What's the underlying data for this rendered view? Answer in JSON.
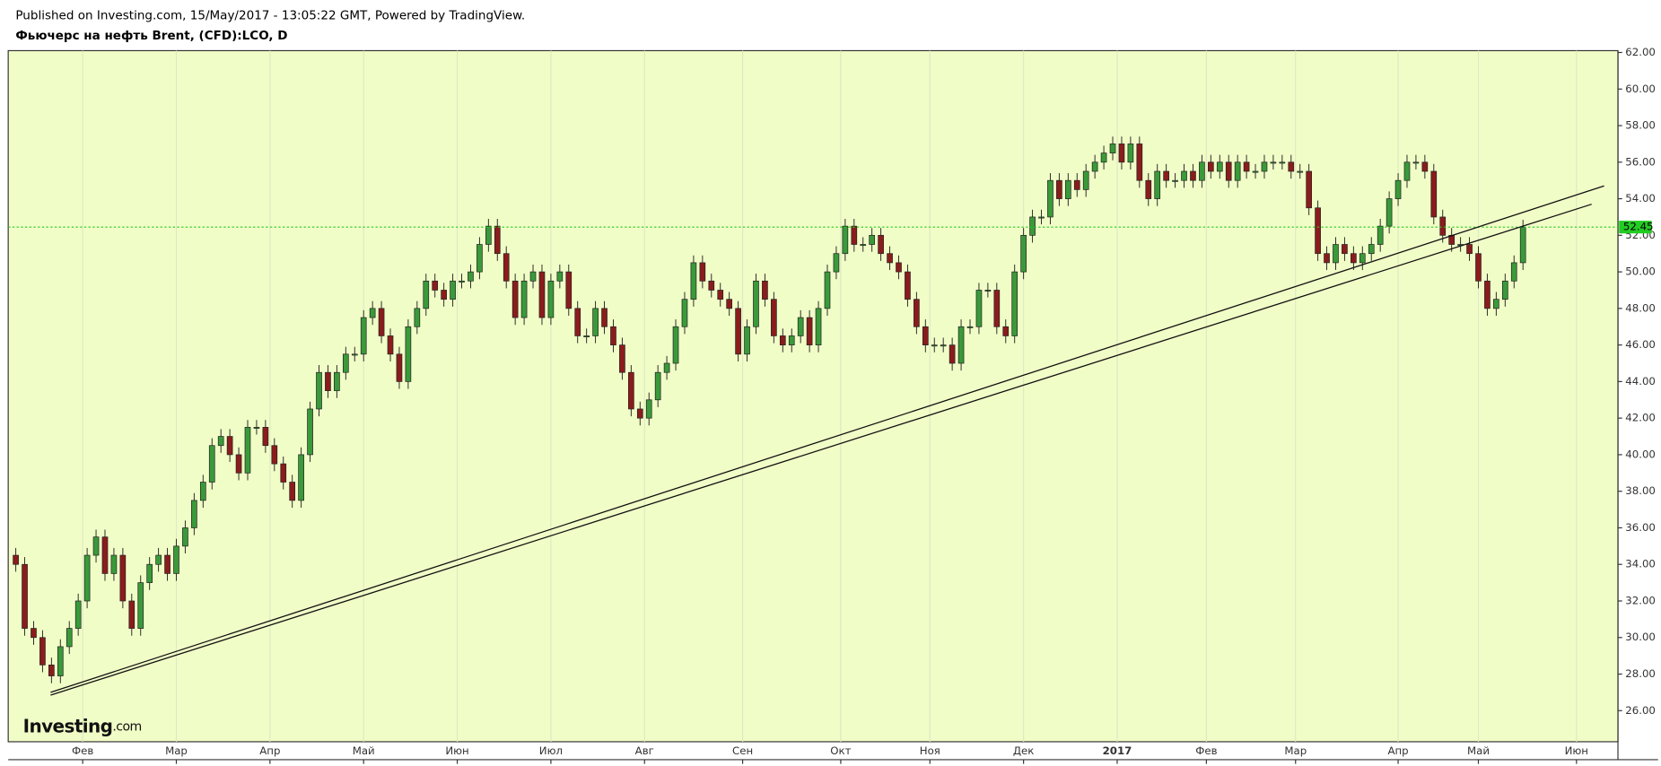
{
  "header": {
    "published": "Published on Investing.com, 15/May/2017 - 13:05:22 GMT, Powered by TradingView.",
    "symbol": "Фьючерс на нефть Brent, (CFD):LCO, D"
  },
  "watermark": {
    "brand": "Investing",
    "suffix": ".com"
  },
  "chart_data": {
    "type": "candlestick",
    "x": [
      0,
      2,
      4,
      6,
      8,
      10,
      12,
      14,
      16,
      18,
      20,
      22,
      24,
      26,
      28,
      30,
      32,
      34,
      36,
      38,
      40,
      42,
      44,
      46,
      48,
      50,
      52,
      54,
      56,
      58,
      60,
      62,
      64,
      66,
      68,
      70,
      72,
      74,
      76,
      78,
      80,
      82,
      84,
      86,
      88,
      90,
      92,
      94,
      96,
      98,
      100,
      102,
      104,
      106,
      108,
      110,
      112,
      114,
      116,
      118,
      120,
      122,
      124,
      126,
      128,
      130,
      132,
      134,
      136,
      138,
      140,
      142,
      144,
      146,
      148,
      150,
      152,
      154,
      156,
      158,
      160,
      162,
      164,
      166,
      168,
      170,
      172,
      174,
      176,
      178,
      180,
      182,
      184,
      186,
      188,
      190,
      192,
      194,
      196,
      198,
      200,
      202,
      204,
      206,
      208,
      210,
      212,
      214,
      216,
      218,
      220,
      222,
      224,
      226,
      228,
      230,
      232,
      234,
      236,
      238,
      240,
      242,
      244,
      246,
      248,
      250,
      252,
      254,
      256,
      258,
      260,
      262,
      264,
      266,
      268,
      270,
      272,
      274,
      276,
      278,
      280,
      282,
      284,
      286,
      288,
      290,
      292,
      294,
      296,
      298,
      300,
      302,
      304,
      306,
      308,
      310,
      312,
      314,
      316,
      318,
      320,
      322,
      324,
      326,
      328,
      330,
      332,
      334,
      336,
      338
    ],
    "series": [
      {
        "up_color": "#3a9a3a",
        "down_color": "#8b1c1c",
        "open": [
          34.5,
          34,
          30.5,
          30,
          28.5,
          27.9,
          29.5,
          30.5,
          32,
          34.5,
          35.5,
          33.5,
          34.5,
          32,
          30.5,
          33,
          34,
          34.5,
          33.5,
          35,
          36,
          37.5,
          38.5,
          40.5,
          41,
          40,
          39,
          41.5,
          41.5,
          40.5,
          39.5,
          38.5,
          37.5,
          40,
          42.5,
          44.5,
          43.5,
          44.5,
          45.5,
          45.5,
          47.5,
          48,
          46.5,
          45.5,
          44,
          47,
          48,
          49.5,
          49,
          48.5,
          49.5,
          49.5,
          50,
          51.5,
          52.5,
          51,
          49.5,
          47.5,
          49.5,
          50,
          47.5,
          49.5,
          50,
          48,
          46.5,
          46.5,
          48,
          47,
          46,
          44.5,
          42.5,
          42,
          43,
          44.5,
          45,
          47,
          48.5,
          50.5,
          49.5,
          49,
          48.5,
          48,
          45.5,
          47,
          49.5,
          48.5,
          46.5,
          46,
          46.5,
          47.5,
          46,
          48,
          50,
          51,
          52.5,
          51.5,
          51.5,
          52,
          51,
          50.5,
          50,
          48.5,
          47,
          46,
          46,
          46,
          45,
          47,
          47,
          49,
          49,
          47,
          46.5,
          50,
          52,
          53,
          53,
          55,
          54,
          55,
          54.5,
          55.5,
          56,
          56.5,
          57,
          56,
          57,
          55,
          54,
          55.5,
          55,
          55,
          55.5,
          55,
          56,
          55.5,
          56,
          55,
          56,
          55.5,
          55.5,
          56,
          56,
          56,
          55.5,
          55.5,
          53.5,
          51,
          50.5,
          51.5,
          51,
          50.5,
          51,
          51.5,
          52.5,
          54,
          55,
          56,
          56,
          55.5,
          53,
          52,
          51.5,
          51.5,
          51,
          49.5,
          48,
          48.5,
          49.5,
          50.5
        ],
        "high": [
          34.9,
          34.4,
          30.9,
          30.4,
          28.9,
          29.9,
          30.9,
          32.4,
          34.9,
          35.9,
          35.9,
          34.9,
          34.9,
          32.4,
          33.4,
          34.4,
          34.9,
          34.9,
          35.4,
          36.4,
          37.9,
          38.9,
          40.9,
          41.4,
          41.4,
          40.4,
          41.9,
          41.9,
          41.9,
          40.9,
          39.9,
          38.9,
          40.4,
          42.9,
          44.9,
          44.9,
          44.9,
          45.9,
          45.9,
          47.9,
          48.4,
          48.4,
          46.9,
          45.9,
          47.4,
          48.4,
          49.9,
          49.9,
          49.4,
          49.9,
          49.9,
          50.4,
          51.9,
          52.9,
          52.9,
          51.4,
          49.9,
          49.9,
          50.4,
          50.4,
          49.9,
          50.4,
          50.4,
          48.4,
          46.9,
          48.4,
          48.4,
          47.4,
          46.4,
          44.9,
          42.9,
          43.4,
          44.9,
          45.4,
          47.4,
          48.9,
          50.9,
          50.9,
          49.9,
          49.4,
          48.9,
          48.4,
          47.4,
          49.9,
          49.9,
          48.9,
          46.9,
          46.9,
          47.9,
          47.9,
          48.4,
          50.4,
          51.4,
          52.9,
          52.9,
          51.9,
          52.4,
          52.4,
          51.4,
          50.9,
          50.4,
          48.9,
          47.4,
          46.4,
          46.4,
          46.4,
          47.4,
          47.4,
          49.4,
          49.4,
          49.4,
          47.4,
          50.4,
          52.4,
          53.4,
          53.4,
          55.4,
          55.4,
          55.4,
          55.4,
          55.9,
          56.4,
          56.9,
          57.4,
          57.4,
          57.4,
          57.4,
          55.4,
          55.9,
          55.9,
          55.4,
          55.9,
          55.9,
          56.4,
          56.4,
          56.4,
          56.4,
          56.4,
          56.4,
          55.9,
          56.4,
          56.4,
          56.4,
          56.4,
          55.9,
          55.9,
          53.9,
          51.4,
          51.9,
          51.9,
          51.4,
          51.4,
          51.9,
          52.9,
          54.4,
          55.4,
          56.4,
          56.4,
          56.4,
          55.9,
          53.4,
          52.4,
          51.9,
          51.9,
          51.4,
          49.9,
          48.9,
          49.9,
          50.9,
          52.85
        ],
        "low": [
          33.6,
          30.1,
          29.6,
          28.1,
          27.5,
          27.5,
          29.1,
          30.1,
          31.6,
          34.1,
          33.1,
          33.1,
          31.6,
          30.1,
          30.1,
          32.6,
          33.6,
          33.1,
          33.1,
          34.6,
          35.6,
          37.1,
          38.1,
          40.1,
          39.6,
          38.6,
          38.6,
          41.1,
          40.1,
          39.1,
          38.1,
          37.1,
          37.1,
          39.6,
          42.1,
          43.1,
          43.1,
          44.1,
          45.1,
          45.1,
          47.1,
          46.1,
          45.1,
          43.6,
          43.6,
          46.6,
          47.6,
          48.6,
          48.1,
          48.1,
          49.1,
          49.1,
          49.6,
          51.1,
          50.6,
          49.1,
          47.1,
          47.1,
          49.1,
          47.1,
          47.1,
          49.1,
          47.6,
          46.1,
          46.1,
          46.1,
          46.6,
          45.6,
          44.1,
          42.1,
          41.6,
          41.6,
          42.6,
          44.1,
          44.6,
          46.6,
          48.1,
          49.1,
          48.6,
          48.1,
          47.6,
          45.1,
          45.1,
          46.6,
          48.1,
          46.1,
          45.6,
          45.6,
          46.1,
          45.6,
          45.6,
          47.6,
          49.6,
          50.6,
          51.1,
          51.1,
          51.1,
          50.6,
          50.1,
          49.6,
          48.1,
          46.6,
          45.6,
          45.6,
          45.6,
          44.6,
          44.6,
          46.6,
          46.6,
          48.6,
          46.6,
          46.1,
          46.1,
          49.6,
          51.6,
          52.6,
          52.6,
          53.6,
          53.6,
          54.1,
          54.1,
          55.1,
          55.6,
          56.1,
          55.6,
          55.6,
          54.6,
          53.6,
          53.6,
          54.6,
          54.6,
          54.6,
          54.6,
          54.6,
          55.1,
          55.1,
          54.6,
          54.6,
          55.1,
          55.1,
          55.1,
          55.6,
          55.6,
          55.1,
          55.1,
          53.1,
          50.6,
          50.1,
          50.1,
          50.6,
          50.1,
          50.1,
          50.6,
          51.1,
          52.1,
          53.6,
          54.6,
          55.6,
          55.1,
          52.6,
          51.6,
          51.1,
          51.1,
          50.6,
          49.1,
          47.6,
          47.6,
          48.1,
          49.1,
          50.1
        ],
        "close": [
          34,
          30.5,
          30,
          28.5,
          27.9,
          29.5,
          30.5,
          32,
          34.5,
          35.5,
          33.5,
          34.5,
          32,
          30.5,
          33,
          34,
          34.5,
          33.5,
          35,
          36,
          37.5,
          38.5,
          40.5,
          41,
          40,
          39,
          41.5,
          41.5,
          40.5,
          39.5,
          38.5,
          37.5,
          40,
          42.5,
          44.5,
          43.5,
          44.5,
          45.5,
          45.5,
          47.5,
          48,
          46.5,
          45.5,
          44,
          47,
          48,
          49.5,
          49,
          48.5,
          49.5,
          49.5,
          50,
          51.5,
          52.5,
          51,
          49.5,
          47.5,
          49.5,
          50,
          47.5,
          49.5,
          50,
          48,
          46.5,
          46.5,
          48,
          47,
          46,
          44.5,
          42.5,
          42,
          43,
          44.5,
          45,
          47,
          48.5,
          50.5,
          49.5,
          49,
          48.5,
          48,
          45.5,
          47,
          49.5,
          48.5,
          46.5,
          46,
          46.5,
          47.5,
          46,
          48,
          50,
          51,
          52.5,
          51.5,
          51.5,
          52,
          51,
          50.5,
          50,
          48.5,
          47,
          46,
          46,
          46,
          45,
          47,
          47,
          49,
          49,
          47,
          46.5,
          50,
          52,
          53,
          53,
          55,
          54,
          55,
          54.5,
          55.5,
          56,
          56.5,
          57,
          56,
          57,
          55,
          54,
          55.5,
          55,
          55,
          55.5,
          55,
          56,
          55.5,
          56,
          55,
          56,
          55.5,
          55.5,
          56,
          56,
          56,
          55.5,
          55.5,
          53.5,
          51,
          50.5,
          51.5,
          51,
          50.5,
          51,
          51.5,
          52.5,
          54,
          55,
          56,
          56,
          55.5,
          53,
          52,
          51.5,
          51.5,
          51,
          49.5,
          48,
          48.5,
          49.5,
          50.5,
          52.45
        ]
      }
    ],
    "last_price_color": "#22cc22",
    "trend_lines": [
      {
        "x": [
          7.8,
          356.2
        ],
        "y": [
          27,
          54.7
        ]
      },
      {
        "x": [
          7.8,
          353.4
        ],
        "y": [
          26.85,
          53.7
        ]
      }
    ],
    "trend_color": "#111111",
    "background": "#f1fdc7",
    "xlim": [
      -1.7,
      359.3
    ],
    "xticks": [
      {
        "value": 15,
        "label": "Фев"
      },
      {
        "value": 36,
        "label": "Мар"
      },
      {
        "value": 57,
        "label": "Апр"
      },
      {
        "value": 78,
        "label": "Май"
      },
      {
        "value": 99,
        "label": "Июн"
      },
      {
        "value": 120,
        "label": "Июл"
      },
      {
        "value": 141,
        "label": "Авг"
      },
      {
        "value": 163,
        "label": "Сен"
      },
      {
        "value": 185,
        "label": "Окт"
      },
      {
        "value": 205,
        "label": "Ноя"
      },
      {
        "value": 226,
        "label": "Дек"
      },
      {
        "value": 247,
        "label": "2017"
      },
      {
        "value": 267,
        "label": "Фев"
      },
      {
        "value": 287,
        "label": "Мар"
      },
      {
        "value": 310,
        "label": "Апр"
      },
      {
        "value": 328,
        "label": "Май"
      },
      {
        "value": 350,
        "label": "Июн"
      }
    ],
    "ylim": [
      24.3,
      62.1
    ],
    "yticks": [
      {
        "value": 26,
        "label": "26.00"
      },
      {
        "value": 28,
        "label": "28.00"
      },
      {
        "value": 30,
        "label": "30.00"
      },
      {
        "value": 32,
        "label": "32.00"
      },
      {
        "value": 34,
        "label": "34.00"
      },
      {
        "value": 36,
        "label": "36.00"
      },
      {
        "value": 38,
        "label": "38.00"
      },
      {
        "value": 40,
        "label": "40.00"
      },
      {
        "value": 42,
        "label": "42.00"
      },
      {
        "value": 44,
        "label": "44.00"
      },
      {
        "value": 46,
        "label": "46.00"
      },
      {
        "value": 48,
        "label": "48.00"
      },
      {
        "value": 50,
        "label": "50.00"
      },
      {
        "value": 52,
        "label": "52.00"
      },
      {
        "value": 54,
        "label": "54.00"
      },
      {
        "value": 56,
        "label": "56.00"
      },
      {
        "value": 58,
        "label": "58.00"
      },
      {
        "value": 60,
        "label": "60.00"
      },
      {
        "value": 62,
        "label": "62.00"
      }
    ],
    "grid": true
  }
}
